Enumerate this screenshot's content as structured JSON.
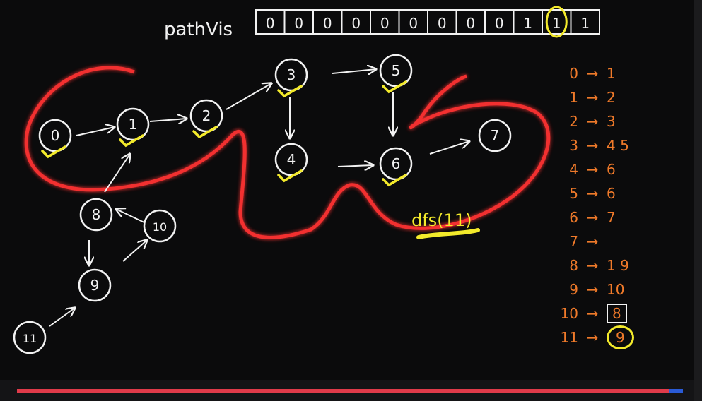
{
  "header": {
    "label": "pathVis",
    "cells": [
      "0",
      "0",
      "0",
      "0",
      "0",
      "0",
      "0",
      "0",
      "0",
      "1",
      "1",
      "1"
    ],
    "highlighted_cell": 10
  },
  "graph": {
    "nodes": [
      "0",
      "1",
      "2",
      "3",
      "4",
      "5",
      "6",
      "7",
      "8",
      "9",
      "10",
      "11"
    ],
    "call_label": "dfs(11)"
  },
  "adjacency": [
    {
      "node": "0",
      "arrow": "→",
      "neighbors": "1"
    },
    {
      "node": "1",
      "arrow": "→",
      "neighbors": "2"
    },
    {
      "node": "2",
      "arrow": "→",
      "neighbors": "3"
    },
    {
      "node": "3",
      "arrow": "→",
      "neighbors": "4 5"
    },
    {
      "node": "4",
      "arrow": "→",
      "neighbors": "6"
    },
    {
      "node": "5",
      "arrow": "→",
      "neighbors": "6"
    },
    {
      "node": "6",
      "arrow": "→",
      "neighbors": "7"
    },
    {
      "node": "7",
      "arrow": "→",
      "neighbors": ""
    },
    {
      "node": "8",
      "arrow": "→",
      "neighbors": "1 9"
    },
    {
      "node": "9",
      "arrow": "→",
      "neighbors": "10"
    },
    {
      "node": "10",
      "arrow": "→",
      "neighbors": "8"
    },
    {
      "node": "11",
      "arrow": "→",
      "neighbors": "9"
    }
  ],
  "video": {
    "progress": 0.98
  },
  "colors": {
    "board": "#0b0b0c",
    "chalk": "#f2f2f2",
    "orange": "#f07a2a",
    "yellow": "#f3ea2b",
    "red": "#ff2d2d",
    "progress": "#e03b4a",
    "track": "#2a5bd7"
  }
}
